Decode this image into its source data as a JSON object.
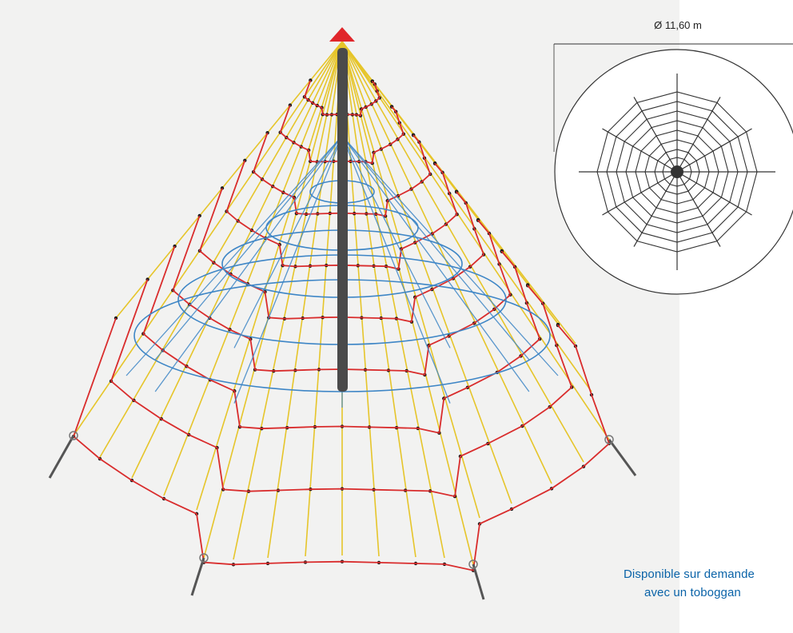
{
  "dimension": {
    "label": "Ø 11,60 m"
  },
  "caption": {
    "line1": "Disponible sur demande",
    "line2": "avec un toboggan"
  },
  "colors": {
    "background": "#f2f2f1",
    "pole_cap": "#e0262b",
    "pole": "#4a4a4a",
    "rope_red": "#d92c2c",
    "rope_yellow": "#e6c52a",
    "rope_blue": "#3e86c6",
    "knot": "#1a1a1a",
    "caption_text": "#0a63a8",
    "plan_line": "#333333"
  },
  "icons": [
    "pyramid-climbing-net-illustration",
    "top-view-plan-diagram"
  ]
}
